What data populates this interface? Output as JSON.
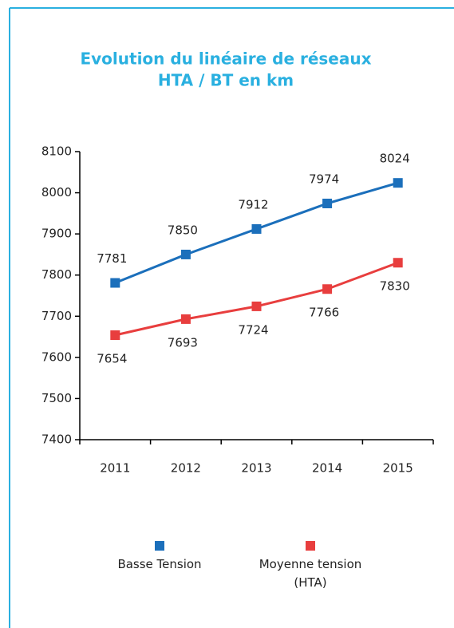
{
  "chart_data": {
    "type": "line",
    "title": [
      "Evolution du linéaire de réseaux",
      "HTA / BT en km"
    ],
    "categories": [
      "2011",
      "2012",
      "2013",
      "2014",
      "2015"
    ],
    "series": [
      {
        "name": "Basse Tension",
        "color": "#1b6fbb",
        "values": [
          7781,
          7850,
          7912,
          7974,
          8024
        ]
      },
      {
        "name": "Moyenne tension (HTA)",
        "color": "#e83e3e",
        "values": [
          7654,
          7693,
          7724,
          7766,
          7830
        ]
      }
    ],
    "ylim": [
      7400,
      8100
    ],
    "yticks": [
      7400,
      7500,
      7600,
      7700,
      7800,
      7900,
      8000,
      8100
    ],
    "grid": false,
    "legend": "bottom"
  }
}
